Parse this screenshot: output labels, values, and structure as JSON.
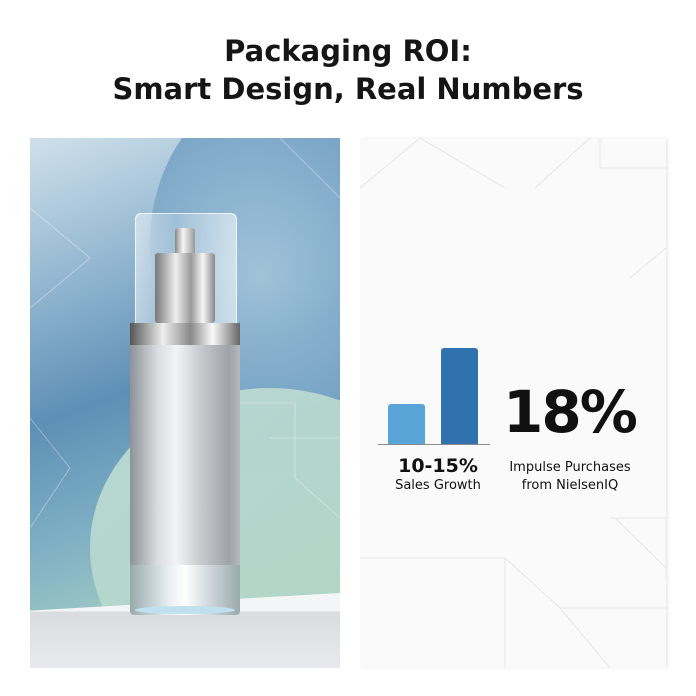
{
  "title": {
    "line1": "Packaging ROI:",
    "line2": "Smart Design, Real Numbers"
  },
  "stats": {
    "sales_growth": {
      "value": "10-15%",
      "label": "Sales Growth"
    },
    "impulse": {
      "value": "18%",
      "label_line1": "Impulse Purchases",
      "label_line2": "from NielsenIQ"
    }
  },
  "chart_data": {
    "type": "bar",
    "categories": [
      "",
      ""
    ],
    "values": [
      42,
      100
    ],
    "colors": [
      "#5aa5d8",
      "#2f72ad"
    ]
  },
  "image": {
    "subject": "silver-pump-bottle-icon"
  }
}
